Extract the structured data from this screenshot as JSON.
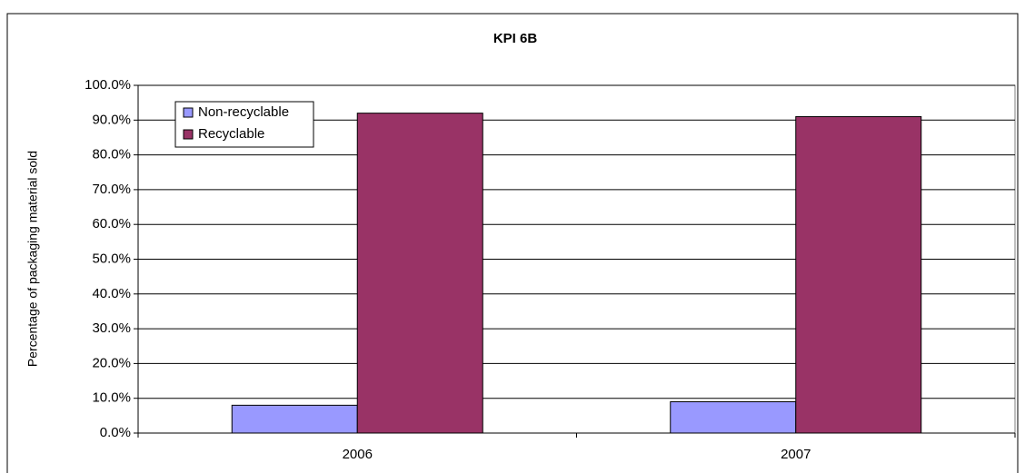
{
  "chart_data": {
    "type": "bar",
    "title": "KPI 6B",
    "y_label": "Percentage of packaging material sold",
    "categories": [
      "2006",
      "2007"
    ],
    "series": [
      {
        "name": "Non-recyclable",
        "color": "#9999ff",
        "values": [
          8,
          9
        ]
      },
      {
        "name": "Recyclable",
        "color": "#993366",
        "values": [
          92,
          91
        ]
      }
    ],
    "ylim": [
      0,
      100
    ],
    "yticks": [
      {
        "value": 0,
        "label": "0.0%"
      },
      {
        "value": 10,
        "label": "10.0%"
      },
      {
        "value": 20,
        "label": "20.0%"
      },
      {
        "value": 30,
        "label": "30.0%"
      },
      {
        "value": 40,
        "label": "40.0%"
      },
      {
        "value": 50,
        "label": "50.0%"
      },
      {
        "value": 60,
        "label": "60.0%"
      },
      {
        "value": 70,
        "label": "70.0%"
      },
      {
        "value": 80,
        "label": "80.0%"
      },
      {
        "value": 90,
        "label": "90.0%"
      },
      {
        "value": 100,
        "label": "100.0%"
      }
    ],
    "grid": true,
    "legend": "upper left"
  }
}
